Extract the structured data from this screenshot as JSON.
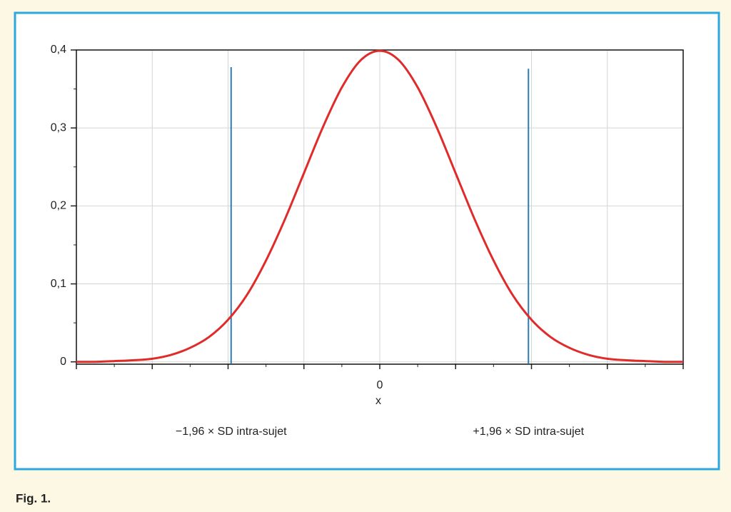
{
  "chart_data": {
    "type": "line",
    "xlabel": "x",
    "caption": "Fig. 1.",
    "x": [
      -4,
      -3.75,
      -3.5,
      -3.25,
      -3,
      -2.75,
      -2.5,
      -2.25,
      -2,
      -1.75,
      -1.5,
      -1.25,
      -1,
      -0.75,
      -0.5,
      -0.25,
      0,
      0.25,
      0.5,
      0.75,
      1,
      1.25,
      1.5,
      1.75,
      2,
      2.25,
      2.5,
      2.75,
      3,
      3.25,
      3.5,
      3.75,
      4
    ],
    "values": [
      0.0,
      0.0,
      0.001,
      0.002,
      0.004,
      0.009,
      0.018,
      0.032,
      0.054,
      0.086,
      0.13,
      0.183,
      0.242,
      0.301,
      0.352,
      0.387,
      0.399,
      0.387,
      0.352,
      0.301,
      0.242,
      0.183,
      0.13,
      0.086,
      0.054,
      0.032,
      0.018,
      0.009,
      0.004,
      0.002,
      0.001,
      0.0,
      0.0
    ],
    "color": "#e02b2b",
    "markers": [
      {
        "x": -1.96,
        "y": 0.378,
        "label": "−1,96 × SD intra-sujet"
      },
      {
        "x": 1.96,
        "y": 0.376,
        "label": "+1,96 × SD intra-sujet"
      }
    ],
    "marker_color": "#2a7db5",
    "xlim": [
      -4,
      4
    ],
    "xticks": [
      {
        "value": -4,
        "label": null
      },
      {
        "value": -3,
        "label": null
      },
      {
        "value": -2,
        "label": null
      },
      {
        "value": -1,
        "label": null
      },
      0,
      {
        "value": 1,
        "label": null
      },
      {
        "value": 2,
        "label": null
      },
      {
        "value": 3,
        "label": null
      },
      {
        "value": 4,
        "label": null
      }
    ],
    "ylim": [
      -0.003,
      0.4
    ],
    "yticks": [
      0,
      {
        "value": 0.1,
        "label": "0,1"
      },
      {
        "value": 0.2,
        "label": "0,2"
      },
      {
        "value": 0.3,
        "label": "0,3"
      },
      {
        "value": 0.4,
        "label": "0,4"
      }
    ],
    "grid": true
  }
}
